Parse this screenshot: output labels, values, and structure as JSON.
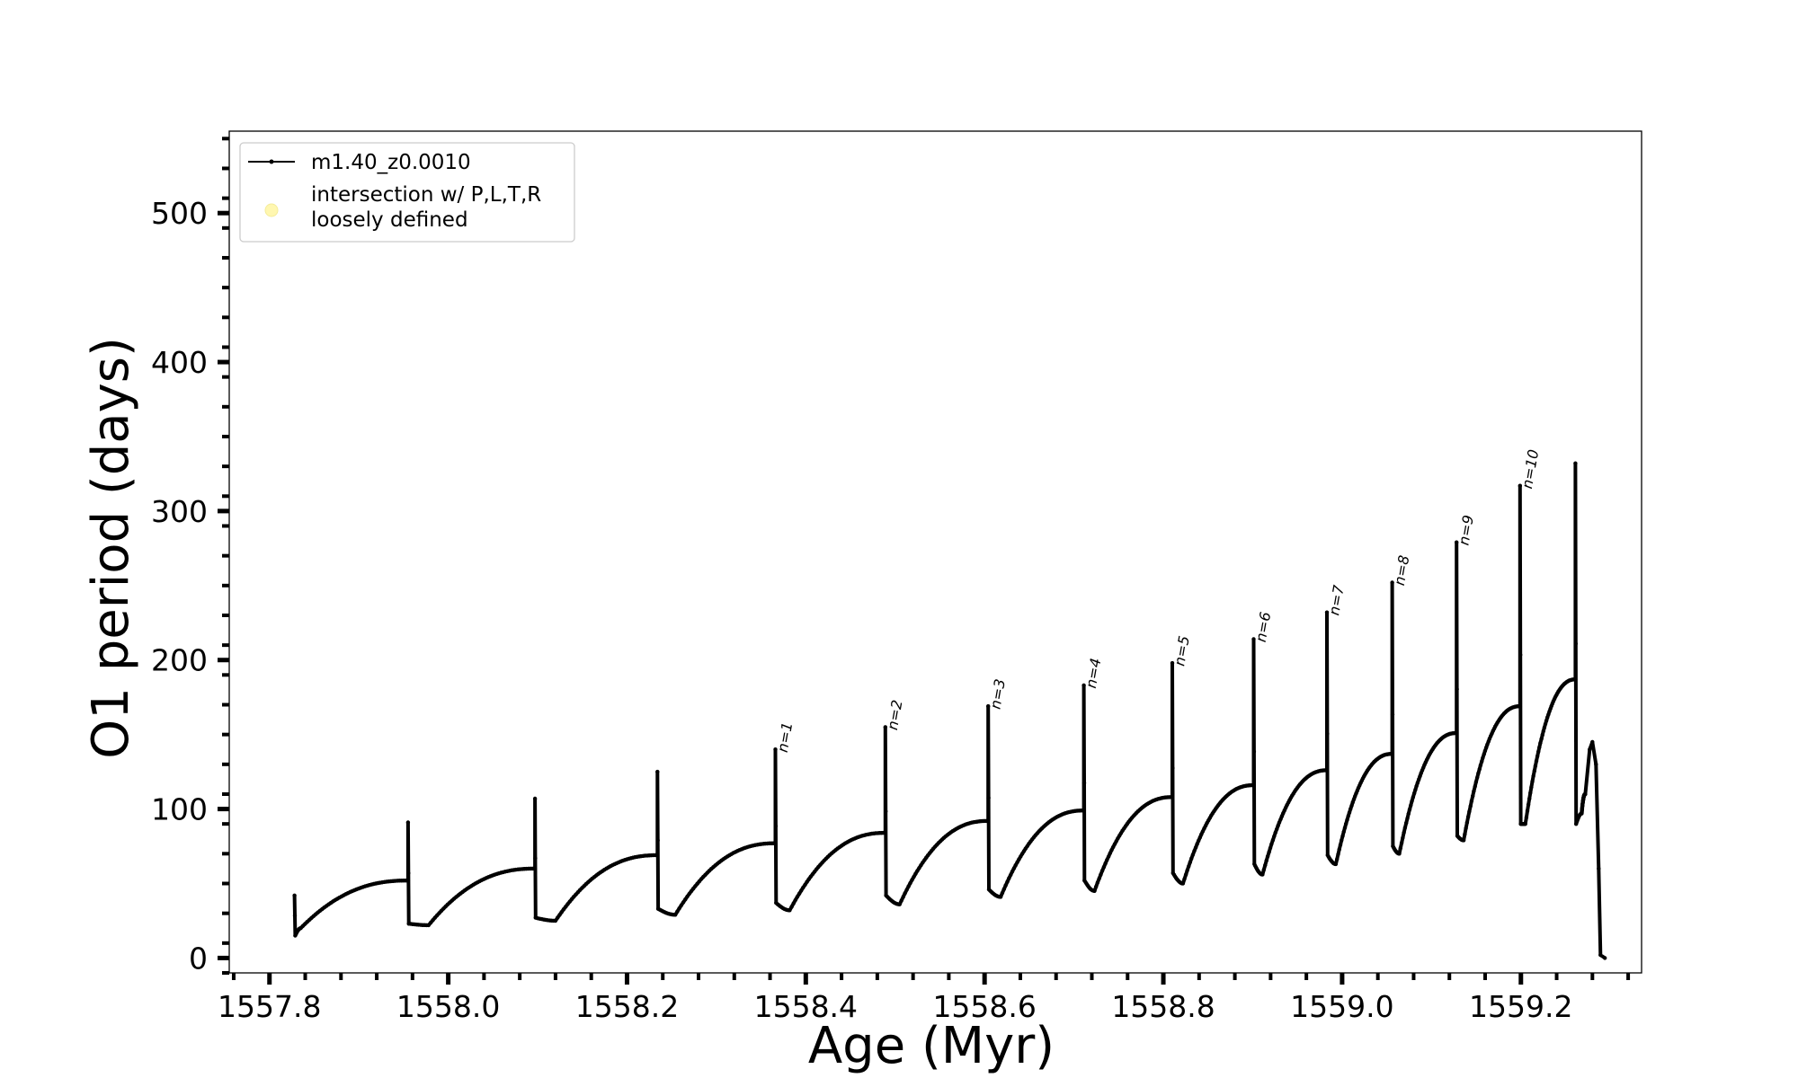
{
  "chart_data": {
    "type": "line",
    "xlabel": "Age (Myr)",
    "ylabel": "O1 period (days)",
    "xlim": [
      1557.755,
      1559.335
    ],
    "ylim": [
      -10,
      555
    ],
    "xticks": [
      1557.8,
      1558.0,
      1558.2,
      1558.4,
      1558.6,
      1558.8,
      1559.0,
      1559.2
    ],
    "xtick_labels": [
      "1557.8",
      "1558.0",
      "1558.2",
      "1558.4",
      "1558.6",
      "1558.8",
      "1559.0",
      "1559.2"
    ],
    "yticks": [
      0,
      100,
      200,
      300,
      400,
      500
    ],
    "ytick_labels": [
      "0",
      "100",
      "200",
      "300",
      "400",
      "500"
    ],
    "grid": false,
    "legend_position": "top-left",
    "series": [
      {
        "name": "m1.40_z0.0010",
        "color": "#000000",
        "style": "line with small dot markers",
        "cycles": [
          {
            "t0": 1557.828,
            "peak": 42,
            "min": 15,
            "t_min": 1557.835,
            "trough": 20,
            "t_end": 1557.955,
            "end": 52
          },
          {
            "t0": 1557.955,
            "peak": 91,
            "min": 23,
            "t_min": 1557.978,
            "trough": 22,
            "t_end": 1558.097,
            "end": 60
          },
          {
            "t0": 1558.097,
            "peak": 107,
            "min": 27,
            "t_min": 1558.12,
            "trough": 25,
            "t_end": 1558.234,
            "end": 69
          },
          {
            "t0": 1558.234,
            "peak": 125,
            "min": 33,
            "t_min": 1558.254,
            "trough": 29,
            "t_end": 1558.366,
            "end": 77
          },
          {
            "t0": 1558.366,
            "peak": 140,
            "min": 37,
            "t_min": 1558.382,
            "trough": 32,
            "t_end": 1558.489,
            "end": 84
          },
          {
            "t0": 1558.489,
            "peak": 155,
            "min": 42,
            "t_min": 1558.505,
            "trough": 36,
            "t_end": 1558.604,
            "end": 92
          },
          {
            "t0": 1558.604,
            "peak": 169,
            "min": 46,
            "t_min": 1558.618,
            "trough": 41,
            "t_end": 1558.711,
            "end": 99
          },
          {
            "t0": 1558.711,
            "peak": 183,
            "min": 52,
            "t_min": 1558.723,
            "trough": 45,
            "t_end": 1558.81,
            "end": 108
          },
          {
            "t0": 1558.81,
            "peak": 198,
            "min": 57,
            "t_min": 1558.822,
            "trough": 50,
            "t_end": 1558.901,
            "end": 116
          },
          {
            "t0": 1558.901,
            "peak": 214,
            "min": 63,
            "t_min": 1558.911,
            "trough": 56,
            "t_end": 1558.983,
            "end": 126
          },
          {
            "t0": 1558.983,
            "peak": 232,
            "min": 69,
            "t_min": 1558.993,
            "trough": 63,
            "t_end": 1559.056,
            "end": 137
          },
          {
            "t0": 1559.056,
            "peak": 252,
            "min": 75,
            "t_min": 1559.064,
            "trough": 70,
            "t_end": 1559.128,
            "end": 151
          },
          {
            "t0": 1559.128,
            "peak": 279,
            "min": 82,
            "t_min": 1559.136,
            "trough": 79,
            "t_end": 1559.199,
            "end": 169
          },
          {
            "t0": 1559.199,
            "peak": 317,
            "min": 90,
            "t_min": 1559.205,
            "trough": 90,
            "t_end": 1559.261,
            "end": 187
          },
          {
            "t0": 1559.261,
            "peak": 332,
            "min": 90,
            "t_min": 1559.268,
            "trough": 97,
            "t_end": 1559.272,
            "end": 110
          }
        ],
        "final_tail": [
          {
            "x": 1559.272,
            "y": 110
          },
          {
            "x": 1559.277,
            "y": 140
          },
          {
            "x": 1559.28,
            "y": 145
          },
          {
            "x": 1559.284,
            "y": 130
          },
          {
            "x": 1559.287,
            "y": 60
          },
          {
            "x": 1559.289,
            "y": 2
          },
          {
            "x": 1559.294,
            "y": 0
          }
        ]
      },
      {
        "name": "intersection w/ P,L,T,R loosely defined",
        "color": "#fff7b0",
        "style": "markers",
        "points": []
      }
    ],
    "legend": [
      {
        "label": "m1.40_z0.0010",
        "kind": "line-marker"
      },
      {
        "label_line1": "intersection w/ P,L,T,R",
        "label_line2": "loosely defined",
        "kind": "dot"
      }
    ],
    "annotations": [
      {
        "text": "n=1",
        "x": 1558.366,
        "y": 140
      },
      {
        "text": "n=2",
        "x": 1558.489,
        "y": 155
      },
      {
        "text": "n=3",
        "x": 1558.604,
        "y": 169
      },
      {
        "text": "n=4",
        "x": 1558.711,
        "y": 183
      },
      {
        "text": "n=5",
        "x": 1558.81,
        "y": 198
      },
      {
        "text": "n=6",
        "x": 1558.901,
        "y": 214
      },
      {
        "text": "n=7",
        "x": 1558.983,
        "y": 232
      },
      {
        "text": "n=8",
        "x": 1559.056,
        "y": 252
      },
      {
        "text": "n=9",
        "x": 1559.128,
        "y": 279
      },
      {
        "text": "n=10",
        "x": 1559.199,
        "y": 317
      }
    ]
  }
}
